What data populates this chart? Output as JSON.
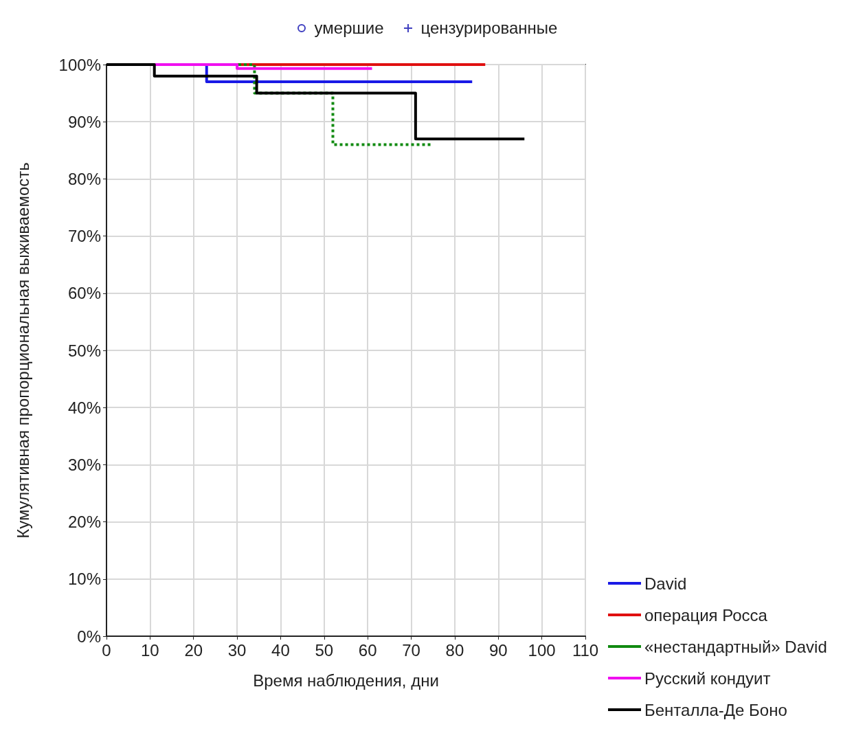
{
  "chart_data": {
    "type": "step",
    "xlabel": "Время наблюдения, дни",
    "ylabel": "Кумулятивная пропорциональная выживаемость",
    "annotations": [
      "умершие",
      "цензурированные"
    ],
    "xlim": [
      0,
      110
    ],
    "xticks": [
      0,
      10,
      20,
      30,
      40,
      50,
      60,
      70,
      80,
      90,
      100,
      110
    ],
    "ylim": [
      0,
      100
    ],
    "yticks": [
      {
        "value": 0,
        "label": "0%"
      },
      {
        "value": 10,
        "label": "10%"
      },
      {
        "value": 20,
        "label": "20%"
      },
      {
        "value": 30,
        "label": "30%"
      },
      {
        "value": 40,
        "label": "40%"
      },
      {
        "value": 50,
        "label": "50%"
      },
      {
        "value": 60,
        "label": "60%"
      },
      {
        "value": 70,
        "label": "70%"
      },
      {
        "value": 80,
        "label": "80%"
      },
      {
        "value": 90,
        "label": "90%"
      },
      {
        "value": 100,
        "label": "100%"
      }
    ],
    "grid": true,
    "legend": "bottom right",
    "marker": "none",
    "series": [
      {
        "name": "David",
        "color": "#1a1ae6",
        "x": [
          0,
          23,
          84
        ],
        "values": [
          100,
          97,
          97
        ]
      },
      {
        "name": "операция Росса",
        "color": "#e01010",
        "x": [
          0,
          87
        ],
        "values": [
          100,
          100
        ]
      },
      {
        "name": "«нестандартный» David",
        "color": "#108a10",
        "line_style": "dotted",
        "x": [
          0,
          34,
          52,
          75
        ],
        "values": [
          100,
          95,
          86,
          86
        ]
      },
      {
        "name": "Русский кондуит",
        "color": "#f010f0",
        "x": [
          0,
          30,
          61
        ],
        "values": [
          100,
          99.3,
          99.3
        ]
      },
      {
        "name": "Бенталла-Де Боно",
        "color": "#000000",
        "x": [
          0,
          11,
          34.5,
          71,
          96
        ],
        "values": [
          100,
          98,
          95,
          87,
          87
        ]
      }
    ]
  }
}
